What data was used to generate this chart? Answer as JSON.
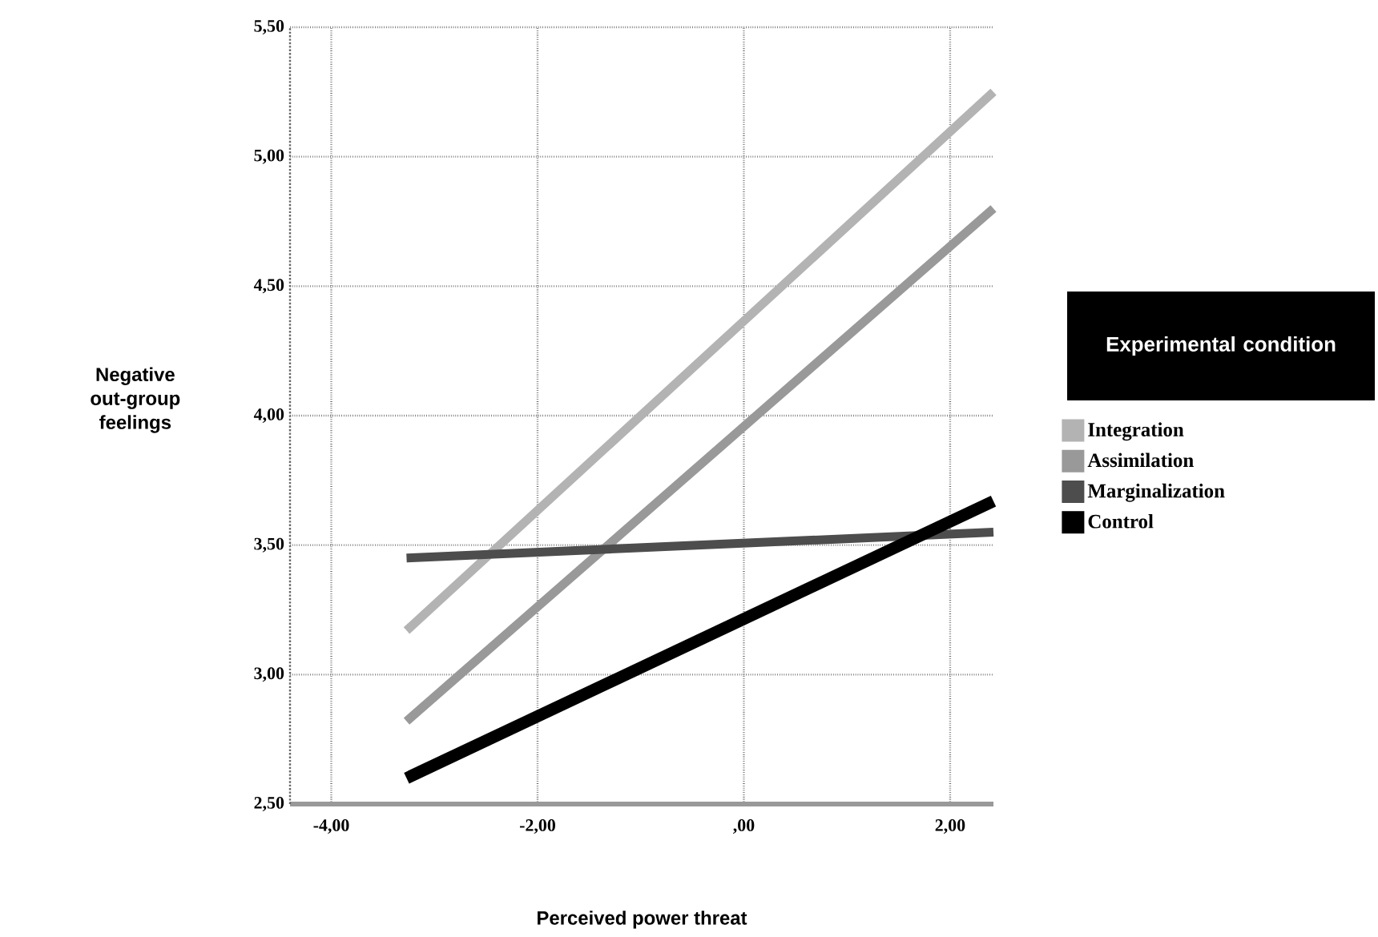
{
  "chart_data": {
    "type": "line",
    "xlabel": "Perceived power threat",
    "ylabel": "Negative\nout-group\nfeelings",
    "legend_title": "Experimental condition",
    "x": [
      -3.27,
      2.42
    ],
    "series": [
      {
        "name": "Integration",
        "color": "#b3b3b3",
        "values": [
          3.17,
          5.25
        ]
      },
      {
        "name": "Assimilation",
        "color": "#999999",
        "values": [
          2.82,
          4.8
        ]
      },
      {
        "name": "Marginalization",
        "color": "#4d4d4d",
        "values": [
          3.45,
          3.55
        ]
      },
      {
        "name": "Control",
        "color": "#000000",
        "values": [
          2.6,
          3.67
        ]
      }
    ],
    "xlim": [
      -4.4,
      2.42
    ],
    "ylim": [
      2.5,
      5.5
    ],
    "xticks": [
      {
        "value": -4,
        "label": "-4,00"
      },
      {
        "value": -2,
        "label": "-2,00"
      },
      {
        "value": 0,
        "label": ",00"
      },
      {
        "value": 2,
        "label": "2,00"
      }
    ],
    "yticks": [
      {
        "value": 2.5,
        "label": "2,50"
      },
      {
        "value": 3,
        "label": "3,00"
      },
      {
        "value": 3.5,
        "label": "3,50"
      },
      {
        "value": 4,
        "label": "4,00"
      },
      {
        "value": 4.5,
        "label": "4,50"
      },
      {
        "value": 5,
        "label": "5,00"
      },
      {
        "value": 5.5,
        "label": "5,50"
      }
    ],
    "grid": true,
    "legend": "right",
    "marker": "none",
    "line_style": "solid"
  }
}
